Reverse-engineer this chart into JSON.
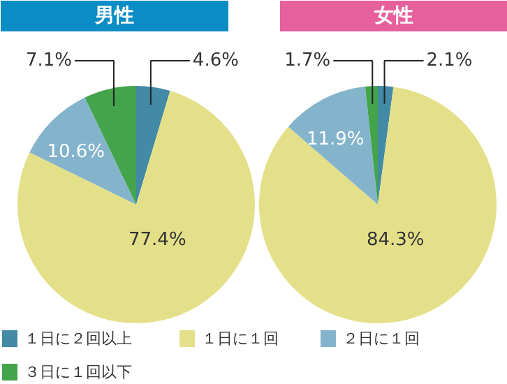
{
  "chart_data": [
    {
      "type": "pie",
      "title": "男性",
      "categories": [
        "１日に２回以上",
        "１日に１回",
        "２日に１回",
        "３日に１回以下"
      ],
      "values": [
        4.6,
        77.4,
        10.6,
        7.1
      ],
      "colors": [
        "#428aa6",
        "#e4e08a",
        "#84b4cb",
        "#43a44b"
      ],
      "value_labels": [
        "4.6%",
        "77.4%",
        "10.6%",
        "7.1%"
      ],
      "legend": "bottom"
    },
    {
      "type": "pie",
      "title": "女性",
      "categories": [
        null,
        null,
        null,
        null
      ],
      "values": [
        2.1,
        84.3,
        11.9,
        1.7
      ],
      "colors": [
        "#428aa6",
        "#e4e08a",
        "#84b4cb",
        "#43a44b"
      ],
      "value_labels": [
        "2.1%",
        "84.3%",
        "11.9%",
        "1.7%"
      ]
    }
  ]
}
